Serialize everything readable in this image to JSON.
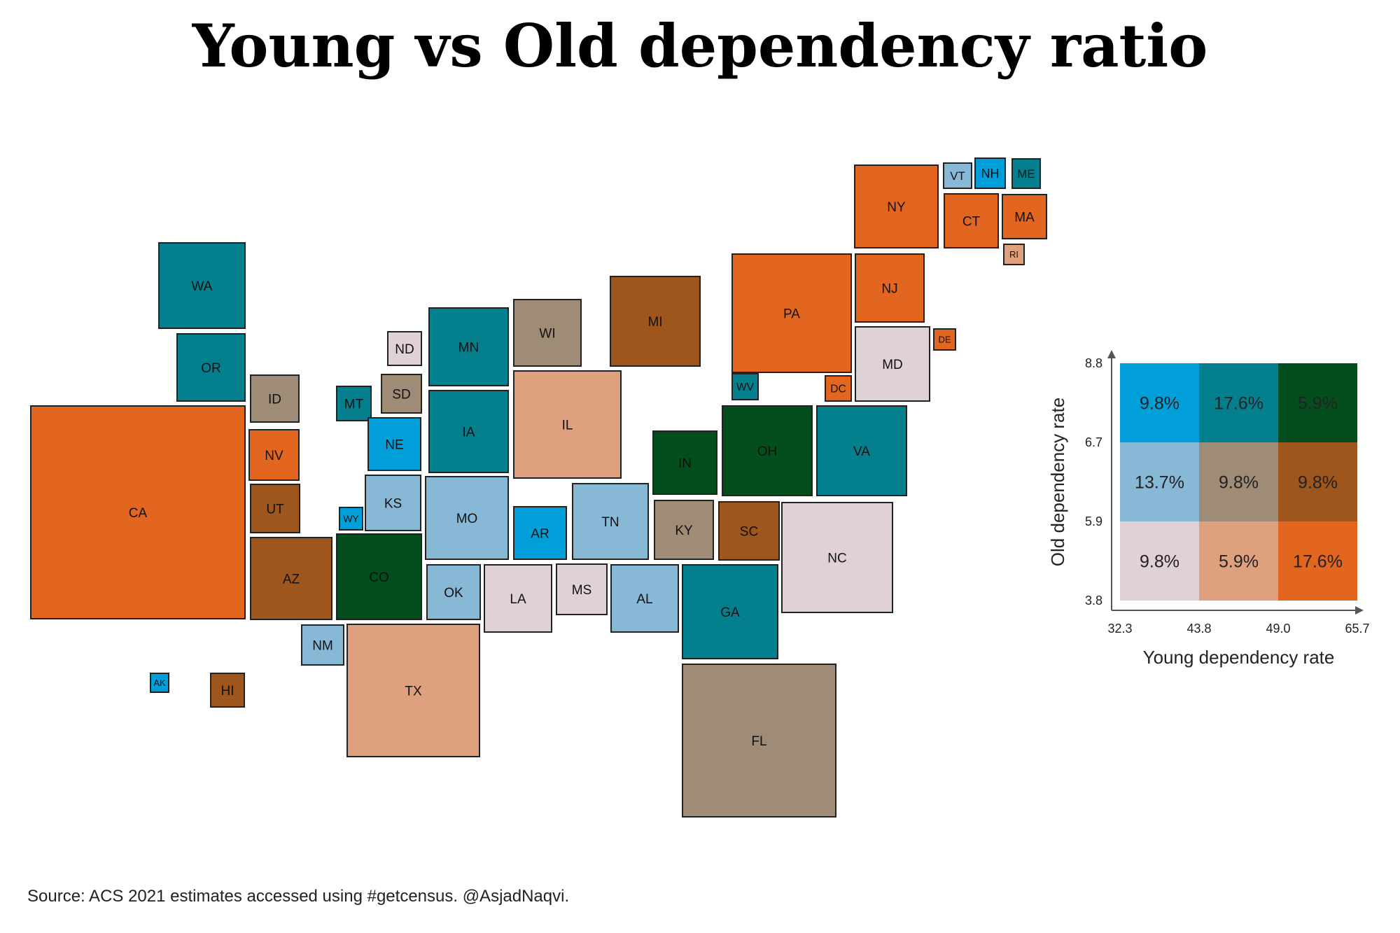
{
  "title": "Young vs Old dependency ratio",
  "source": "Source: ACS 2021 estimates accessed using #getcensus. @AsjadNaqvi.",
  "colors": {
    "stroke": "#222222",
    "axis": "#555555",
    "bivariate_classes": {
      "1-1": "#e0d1d5",
      "2-1": "#dfa07d",
      "3-1": "#e2661f",
      "1-2": "#87b8d6",
      "2-2": "#9e8c77",
      "3-2": "#9e561c",
      "1-3": "#019fd9",
      "2-3": "#037f8e",
      "3-3": "#034e1c"
    }
  },
  "states": [
    {
      "abbr": "WA",
      "young": 2,
      "old": 3
    },
    {
      "abbr": "OR",
      "young": 2,
      "old": 3
    },
    {
      "abbr": "CA",
      "young": 3,
      "old": 1
    },
    {
      "abbr": "ID",
      "young": 2,
      "old": 2
    },
    {
      "abbr": "NV",
      "young": 3,
      "old": 1
    },
    {
      "abbr": "UT",
      "young": 3,
      "old": 2
    },
    {
      "abbr": "AZ",
      "young": 3,
      "old": 2
    },
    {
      "abbr": "MT",
      "young": 2,
      "old": 3
    },
    {
      "abbr": "WY",
      "young": 1,
      "old": 3
    },
    {
      "abbr": "CO",
      "young": 3,
      "old": 3
    },
    {
      "abbr": "NM",
      "young": 1,
      "old": 2
    },
    {
      "abbr": "ND",
      "young": 1,
      "old": 1
    },
    {
      "abbr": "SD",
      "young": 2,
      "old": 2
    },
    {
      "abbr": "NE",
      "young": 1,
      "old": 3
    },
    {
      "abbr": "KS",
      "young": 1,
      "old": 2
    },
    {
      "abbr": "OK",
      "young": 1,
      "old": 2
    },
    {
      "abbr": "TX",
      "young": 2,
      "old": 1
    },
    {
      "abbr": "MN",
      "young": 2,
      "old": 3
    },
    {
      "abbr": "IA",
      "young": 2,
      "old": 3
    },
    {
      "abbr": "MO",
      "young": 1,
      "old": 2
    },
    {
      "abbr": "AR",
      "young": 1,
      "old": 3
    },
    {
      "abbr": "LA",
      "young": 1,
      "old": 1
    },
    {
      "abbr": "WI",
      "young": 2,
      "old": 2
    },
    {
      "abbr": "IL",
      "young": 2,
      "old": 1
    },
    {
      "abbr": "MS",
      "young": 1,
      "old": 1
    },
    {
      "abbr": "MI",
      "young": 3,
      "old": 2
    },
    {
      "abbr": "IN",
      "young": 3,
      "old": 3
    },
    {
      "abbr": "KY",
      "young": 2,
      "old": 2
    },
    {
      "abbr": "TN",
      "young": 1,
      "old": 2
    },
    {
      "abbr": "AL",
      "young": 1,
      "old": 2
    },
    {
      "abbr": "OH",
      "young": 3,
      "old": 3
    },
    {
      "abbr": "WV",
      "young": 2,
      "old": 3
    },
    {
      "abbr": "PA",
      "young": 3,
      "old": 1
    },
    {
      "abbr": "NY",
      "young": 3,
      "old": 1
    },
    {
      "abbr": "VT",
      "young": 1,
      "old": 2
    },
    {
      "abbr": "NH",
      "young": 1,
      "old": 3
    },
    {
      "abbr": "ME",
      "young": 2,
      "old": 3
    },
    {
      "abbr": "MA",
      "young": 3,
      "old": 1
    },
    {
      "abbr": "CT",
      "young": 3,
      "old": 1
    },
    {
      "abbr": "RI",
      "young": 2,
      "old": 1
    },
    {
      "abbr": "NJ",
      "young": 3,
      "old": 1
    },
    {
      "abbr": "DE",
      "young": 3,
      "old": 1
    },
    {
      "abbr": "MD",
      "young": 1,
      "old": 1
    },
    {
      "abbr": "DC",
      "young": 3,
      "old": 1
    },
    {
      "abbr": "VA",
      "young": 2,
      "old": 3
    },
    {
      "abbr": "NC",
      "young": 1,
      "old": 1
    },
    {
      "abbr": "SC",
      "young": 3,
      "old": 2
    },
    {
      "abbr": "GA",
      "young": 2,
      "old": 3
    },
    {
      "abbr": "FL",
      "young": 2,
      "old": 2
    },
    {
      "abbr": "AK",
      "young": 1,
      "old": 3
    },
    {
      "abbr": "HI",
      "young": 3,
      "old": 2
    }
  ],
  "legend": {
    "xlabel": "Young dependency rate",
    "ylabel": "Old dependency rate",
    "x_breaks": [
      "32.3",
      "43.8",
      "49.0",
      "65.7"
    ],
    "y_breaks": [
      "3.8",
      "5.9",
      "6.7",
      "8.8"
    ],
    "cells": [
      {
        "young": 1,
        "old": 3,
        "share": "9.8%"
      },
      {
        "young": 2,
        "old": 3,
        "share": "17.6%"
      },
      {
        "young": 3,
        "old": 3,
        "share": "5.9%"
      },
      {
        "young": 1,
        "old": 2,
        "share": "13.7%"
      },
      {
        "young": 2,
        "old": 2,
        "share": "9.8%"
      },
      {
        "young": 3,
        "old": 2,
        "share": "9.8%"
      },
      {
        "young": 1,
        "old": 1,
        "share": "9.8%"
      },
      {
        "young": 2,
        "old": 1,
        "share": "5.9%"
      },
      {
        "young": 3,
        "old": 1,
        "share": "17.6%"
      }
    ]
  }
}
